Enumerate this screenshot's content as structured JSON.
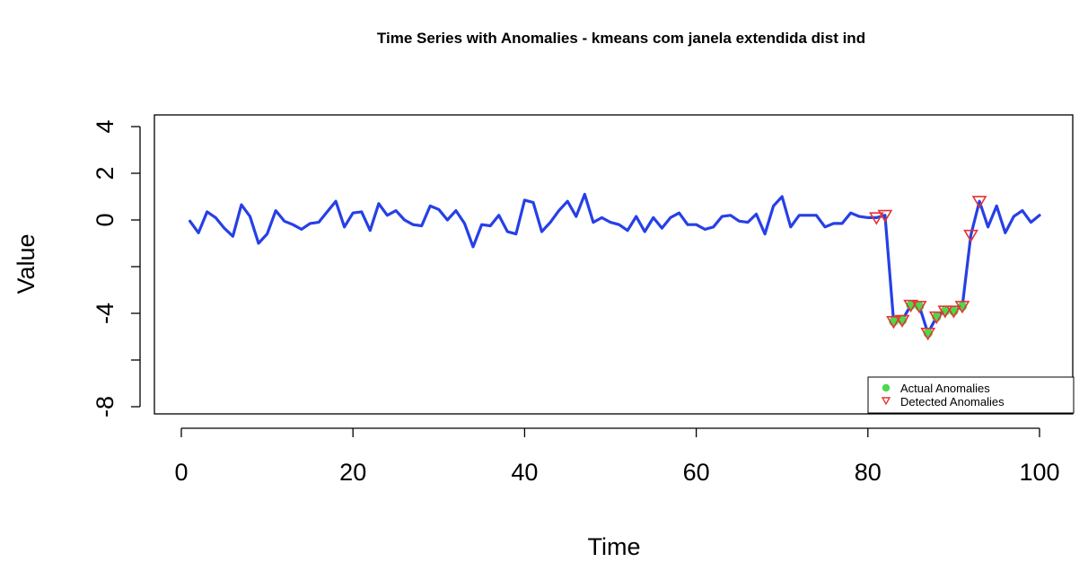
{
  "chart_data": {
    "type": "line",
    "title": "Time Series with Anomalies - kmeans com janela extendida dist ind",
    "xlabel": "Time",
    "ylabel": "Value",
    "xlim": [
      0,
      100
    ],
    "ylim": [
      -8,
      4
    ],
    "x_ticks": [
      0,
      20,
      40,
      60,
      80,
      100
    ],
    "x_tick_labels": [
      "0",
      "20",
      "40",
      "60",
      "80",
      "100"
    ],
    "y_ticks": [
      -8,
      -6,
      -4,
      -2,
      0,
      2,
      4
    ],
    "y_tick_labels": [
      "-8",
      "",
      "-4",
      "",
      "0",
      "2",
      "4"
    ],
    "grid": false,
    "legend_position": "bottom-right",
    "colors": {
      "series": "#2640e6",
      "actual": "#4cd94c",
      "detected": "#e63333"
    },
    "series": [
      {
        "key": "values",
        "x": [
          1,
          2,
          3,
          4,
          5,
          6,
          7,
          8,
          9,
          10,
          11,
          12,
          13,
          14,
          15,
          16,
          17,
          18,
          19,
          20,
          21,
          22,
          23,
          24,
          25,
          26,
          27,
          28,
          29,
          30,
          31,
          32,
          33,
          34,
          35,
          36,
          37,
          38,
          39,
          40,
          41,
          42,
          43,
          44,
          45,
          46,
          47,
          48,
          49,
          50,
          51,
          52,
          53,
          54,
          55,
          56,
          57,
          58,
          59,
          60,
          61,
          62,
          63,
          64,
          65,
          66,
          67,
          68,
          69,
          70,
          71,
          72,
          73,
          74,
          75,
          76,
          77,
          78,
          79,
          80,
          81,
          82,
          83,
          84,
          85,
          86,
          87,
          88,
          89,
          90,
          91,
          92,
          93,
          94,
          95,
          96,
          97,
          98,
          99,
          100
        ],
        "y": [
          -0.05,
          -0.55,
          0.35,
          0.1,
          -0.35,
          -0.7,
          0.65,
          0.15,
          -1.0,
          -0.6,
          0.4,
          -0.05,
          -0.2,
          -0.4,
          -0.15,
          -0.1,
          0.35,
          0.8,
          -0.3,
          0.3,
          0.35,
          -0.45,
          0.7,
          0.2,
          0.4,
          0.0,
          -0.2,
          -0.25,
          0.6,
          0.45,
          0.0,
          0.4,
          -0.15,
          -1.15,
          -0.2,
          -0.25,
          0.2,
          -0.5,
          -0.6,
          0.85,
          0.75,
          -0.5,
          -0.1,
          0.4,
          0.8,
          0.15,
          1.1,
          -0.1,
          0.1,
          -0.1,
          -0.2,
          -0.45,
          0.15,
          -0.5,
          0.1,
          -0.35,
          0.1,
          0.3,
          -0.2,
          -0.2,
          -0.4,
          -0.3,
          0.15,
          0.2,
          -0.05,
          -0.1,
          0.25,
          -0.6,
          0.6,
          1.0,
          -0.3,
          0.2,
          0.2,
          0.2,
          -0.3,
          -0.15,
          -0.15,
          0.3,
          0.15,
          0.1,
          0.1,
          0.2,
          -4.35,
          -4.3,
          -3.65,
          -3.7,
          -4.85,
          -4.15,
          -3.9,
          -3.9,
          -3.7,
          -0.65,
          0.8,
          -0.3,
          0.6,
          -0.55,
          0.15,
          0.4,
          -0.1,
          0.2
        ]
      },
      {
        "name": "Actual Anomalies",
        "x": [
          83,
          84,
          85,
          86,
          87,
          88,
          89,
          90,
          91
        ],
        "y": [
          -4.35,
          -4.3,
          -3.65,
          -3.7,
          -4.85,
          -4.15,
          -3.9,
          -3.9,
          -3.7
        ]
      },
      {
        "name": "Detected Anomalies",
        "x": [
          81,
          82,
          83,
          84,
          85,
          86,
          87,
          88,
          89,
          90,
          91,
          92,
          93
        ],
        "y": [
          0.1,
          0.2,
          -4.35,
          -4.3,
          -3.65,
          -3.7,
          -4.85,
          -4.15,
          -3.9,
          -3.9,
          -3.7,
          -0.65,
          0.8
        ]
      }
    ],
    "legend": [
      {
        "label": "Actual Anomalies",
        "marker": "filled-circle"
      },
      {
        "label": "Detected Anomalies",
        "marker": "down-triangle"
      }
    ]
  }
}
